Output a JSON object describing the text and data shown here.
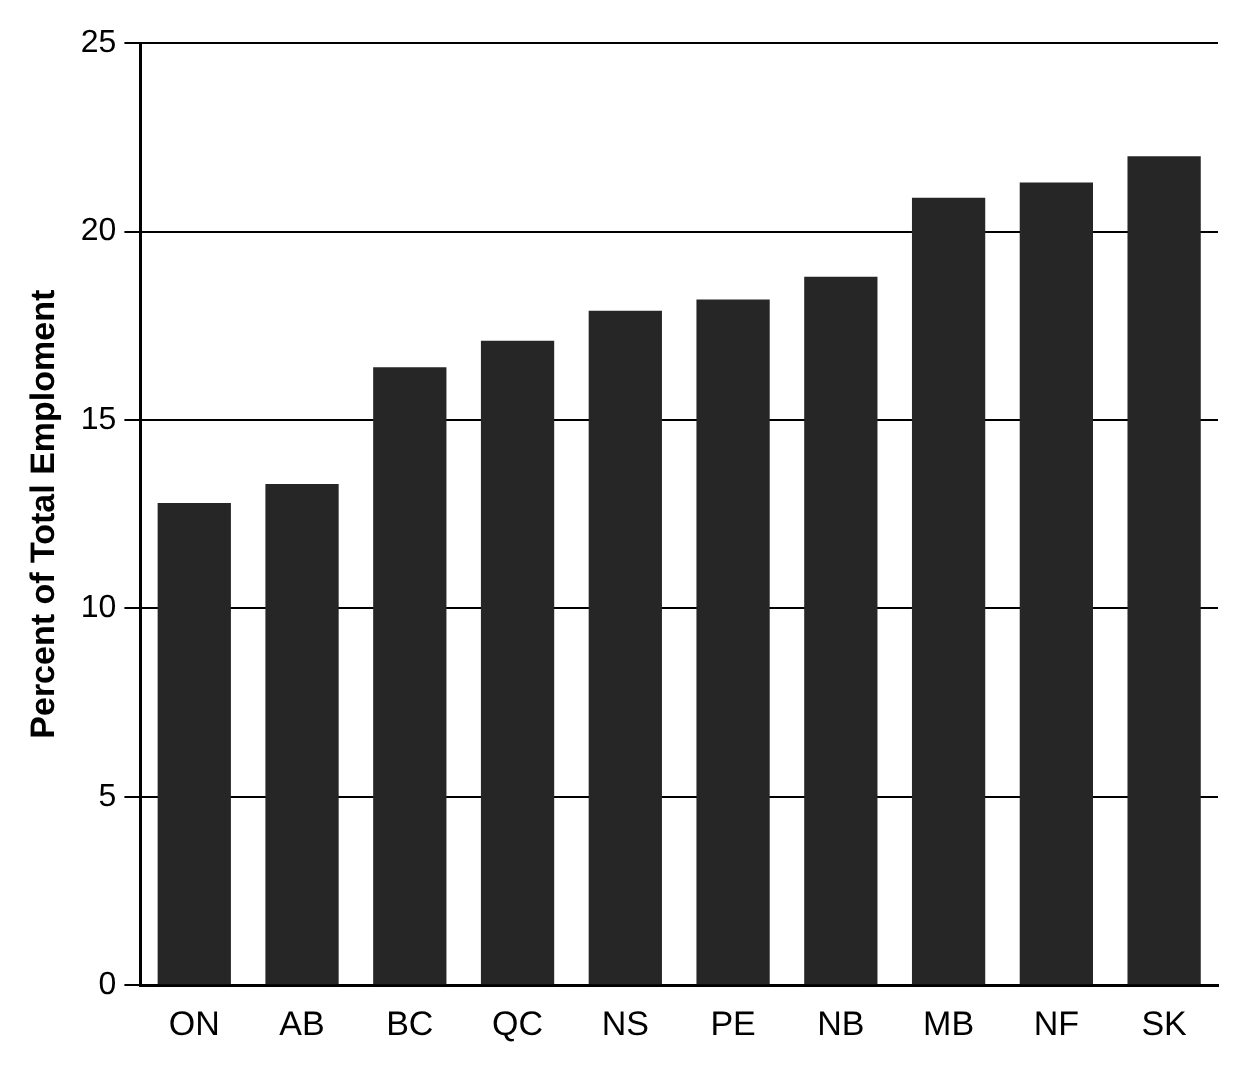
{
  "chart_data": {
    "type": "bar",
    "ylabel": "Percent of Total Emploment",
    "categories": [
      "ON",
      "AB",
      "BC",
      "QC",
      "NS",
      "PE",
      "NB",
      "MB",
      "NF",
      "SK"
    ],
    "values": [
      12.8,
      13.3,
      16.4,
      17.1,
      17.9,
      18.2,
      18.8,
      20.9,
      21.3,
      22.0
    ],
    "color": "#262626",
    "ylim": [
      0,
      25
    ],
    "yticks": [
      0,
      5,
      10,
      15,
      20,
      25
    ],
    "grid": "y",
    "legend": false
  }
}
